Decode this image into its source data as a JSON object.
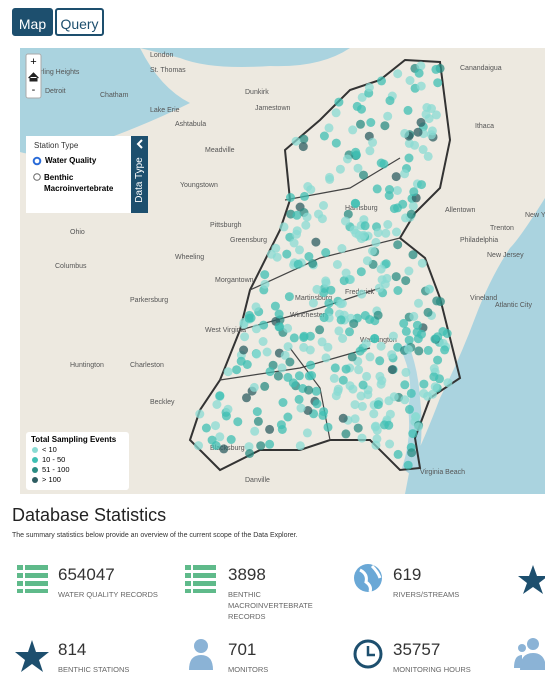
{
  "tabs": [
    "Map",
    "Query"
  ],
  "map": {
    "controls": [
      "+",
      "-"
    ],
    "station_type": {
      "title": "Station Type",
      "options": [
        "Water Quality",
        "Benthic Macroinvertebrate"
      ]
    },
    "data_type_tab": "Data Type",
    "legend": {
      "title": "Total Sampling Events",
      "items": [
        {
          "label": "< 10",
          "color": "#8adbd3"
        },
        {
          "label": "10 - 50",
          "color": "#3fbfb3"
        },
        {
          "label": "51 - 100",
          "color": "#2b8c83"
        },
        {
          "label": "> 100",
          "color": "#2e5d61"
        }
      ]
    },
    "places": [
      "London",
      "St. Thomas",
      "Sterling Heights",
      "Detroit",
      "Chatham",
      "Lake Erie",
      "Dunkirk",
      "Jamestown",
      "Ashtabula",
      "Meadville",
      "Youngstown",
      "Ohio",
      "Pittsburgh",
      "Greensburg",
      "Wheeling",
      "Columbus",
      "Morgantown",
      "Parkersburg",
      "West Virginia",
      "Huntington",
      "Charleston",
      "Beckley",
      "Blacksburg",
      "Danville",
      "Martinsburg",
      "Winchester",
      "Frederick",
      "Washington",
      "Harrisburg",
      "Allentown",
      "Philadelphia",
      "Trenton",
      "New Jersey",
      "New York",
      "Vineland",
      "Atlantic City",
      "Virginia Beach",
      "Canandaigua",
      "Ithaca"
    ]
  },
  "statistics": {
    "title": "Database Statistics",
    "subtitle": "The summary statistics below provide an overview of the current scope of the Data Explorer.",
    "items": [
      {
        "value": 654047,
        "label": "WATER QUALITY RECORDS"
      },
      {
        "value": 3898,
        "label": "BENTHIC MACROINVERTEBRATE RECORDS"
      },
      {
        "value": 619,
        "label": "RIVERS/STREAMS"
      },
      {
        "value": 814,
        "label": "BENTHIC STATIONS"
      },
      {
        "value": 701,
        "label": "MONITORS"
      },
      {
        "value": 35757,
        "label": "MONITORING HOURS"
      }
    ]
  }
}
